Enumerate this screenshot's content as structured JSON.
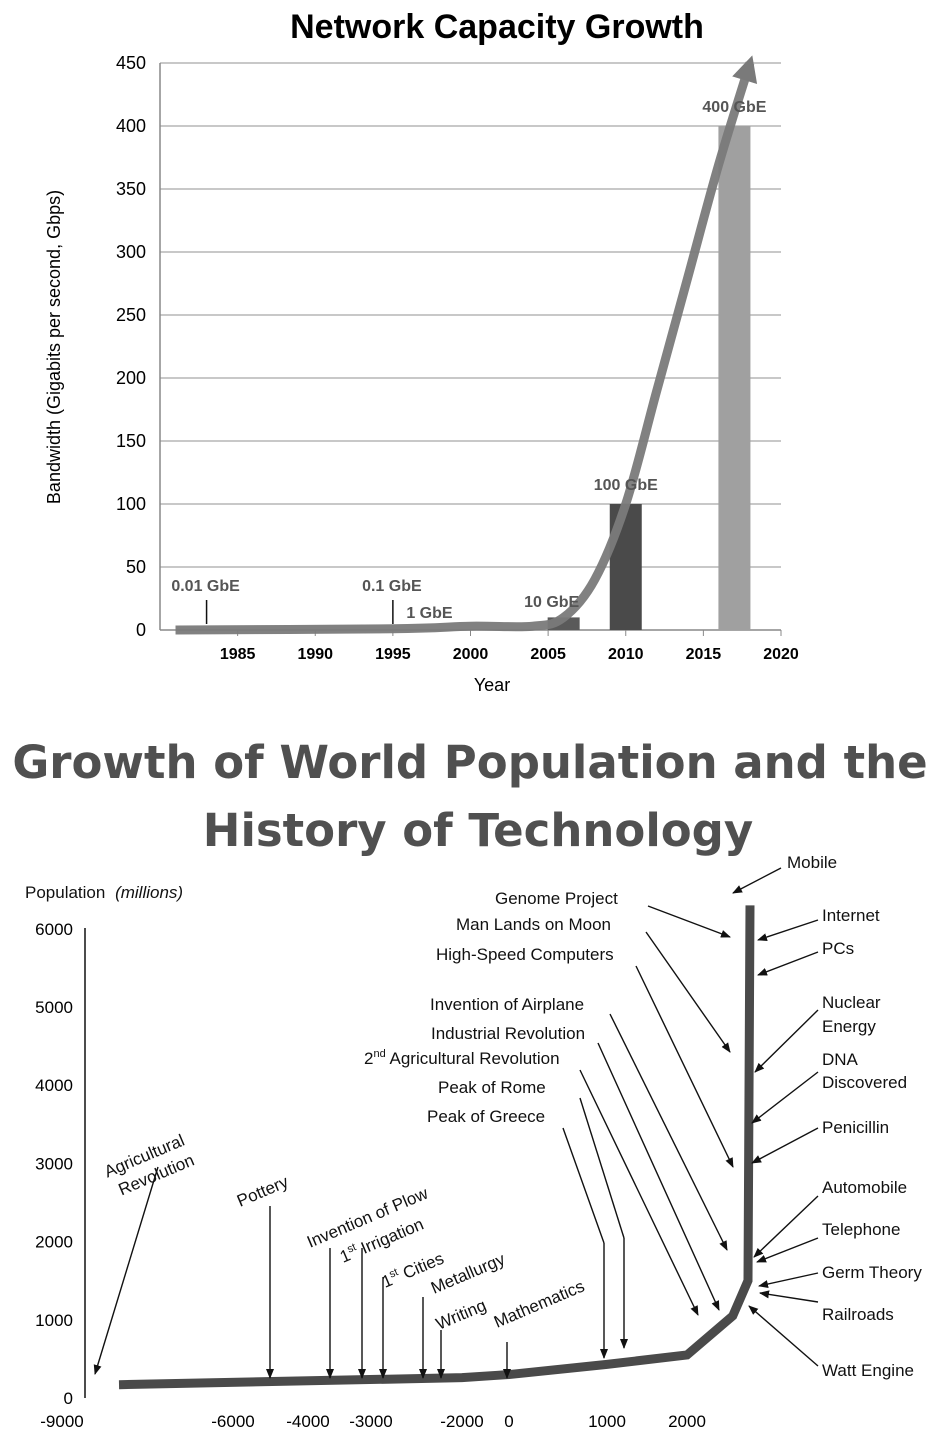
{
  "chart_data": [
    {
      "type": "bar",
      "title": "Network Capacity Growth",
      "xlabel": "Year",
      "ylabel": "Bandwidth (Gigabits per second, Gbps)",
      "xlim": [
        1980,
        2020
      ],
      "ylim": [
        0,
        450
      ],
      "x_ticks": [
        "1985",
        "1990",
        "1995",
        "2000",
        "2005",
        "2010",
        "2015",
        "2020"
      ],
      "y_ticks": [
        "0",
        "50",
        "100",
        "150",
        "200",
        "250",
        "300",
        "350",
        "400",
        "450"
      ],
      "grid": true,
      "bars": [
        {
          "label": "0.01 GbE",
          "x": 1983,
          "value": 0.01,
          "color": "#5a5a5a"
        },
        {
          "label": "0.1 GbE",
          "x": 1995,
          "value": 0.1,
          "color": "#5a5a5a"
        },
        {
          "label": "1 GbE",
          "x": 1998,
          "value": 1,
          "color": "#5a5a5a"
        },
        {
          "label": "10 GbE",
          "x": 2006,
          "value": 10,
          "color": "#5a5a5a"
        },
        {
          "label": "100 GbE",
          "x": 2010,
          "value": 100,
          "color": "#4a4a4a"
        },
        {
          "label": "400 GbE",
          "x": 2017,
          "value": 400,
          "color": "#a0a0a0"
        }
      ],
      "trend_curve": {
        "color": "#7a7a7a",
        "points": [
          [
            1981,
            0
          ],
          [
            1995,
            1
          ],
          [
            2000,
            3
          ],
          [
            2004,
            3
          ],
          [
            2006,
            10
          ],
          [
            2008,
            40
          ],
          [
            2010,
            100
          ],
          [
            2012,
            190
          ],
          [
            2014,
            280
          ],
          [
            2016,
            370
          ],
          [
            2018,
            450
          ]
        ]
      }
    },
    {
      "type": "line",
      "title": "Growth of World Population and the History of Technology",
      "ylabel": "Population",
      "ylabel_unit": "(millions)",
      "x_ticks": [
        "-9000",
        "-6000",
        "-4000",
        "-3000",
        "-2000",
        "0",
        "1000",
        "2000"
      ],
      "y_ticks": [
        "0",
        "1000",
        "2000",
        "3000",
        "4000",
        "5000",
        "6000"
      ],
      "series": [
        {
          "color": "#4a4a4a",
          "x": [
            -8000,
            -2000,
            -500,
            0,
            1000,
            2000,
            2300,
            2400,
            2420
          ],
          "y": [
            170,
            260,
            290,
            300,
            430,
            550,
            1050,
            1500,
            6300
          ]
        }
      ],
      "events": {
        "agricultural_revolution_1": "Agricultural",
        "agricultural_revolution_2": "Revolution",
        "pottery": "Pottery",
        "invention_of_plow": "Invention of Plow",
        "irrigation_prefix": "1",
        "irrigation_sup": "st",
        "irrigation_text": " Irrigation",
        "cities_prefix": "1",
        "cities_sup": "st",
        "cities_text": " Cities",
        "metallurgy": "Metallurgy",
        "writing": "Writing",
        "mathematics": "Mathematics",
        "peak_of_greece": "Peak of Greece",
        "peak_of_rome": "Peak of Rome",
        "agri2_prefix": "2",
        "agri2_sup": "nd",
        "agri2_text": " Agricultural Revolution",
        "industrial_revolution": "Industrial Revolution",
        "invention_of_airplane": "Invention of Airplane",
        "high_speed_computers": "High-Speed Computers",
        "man_lands_on_moon": "Man Lands on Moon",
        "genome_project": "Genome Project",
        "mobile": "Mobile",
        "internet": "Internet",
        "pcs": "PCs",
        "nuclear_1": "Nuclear",
        "nuclear_2": "Energy",
        "dna_1": "DNA",
        "dna_2": "Discovered",
        "penicillin": "Penicillin",
        "automobile": "Automobile",
        "telephone": "Telephone",
        "germ_theory": "Germ Theory",
        "railroads": "Railroads",
        "watt_engine": "Watt Engine"
      }
    }
  ]
}
